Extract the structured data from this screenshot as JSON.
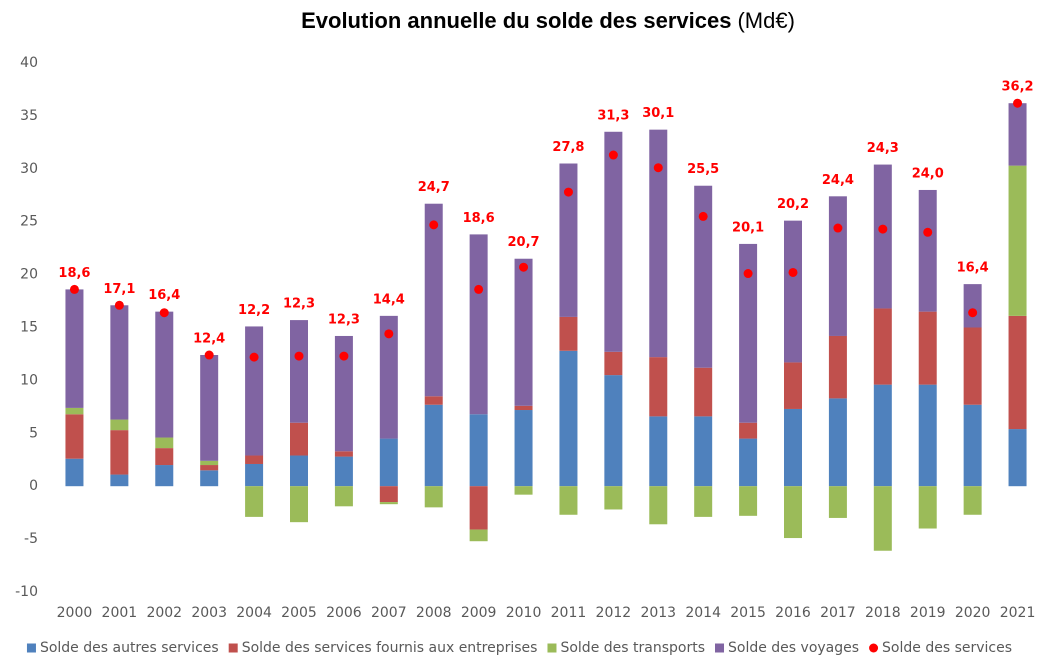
{
  "chart_data": {
    "type": "bar",
    "stacked": true,
    "title": "Evolution annuelle du solde des services",
    "title_unit": "(Md€)",
    "categories": [
      "2000",
      "2001",
      "2002",
      "2003",
      "2004",
      "2005",
      "2006",
      "2007",
      "2008",
      "2009",
      "2010",
      "2011",
      "2012",
      "2013",
      "2014",
      "2015",
      "2016",
      "2017",
      "2018",
      "2019",
      "2020",
      "2021"
    ],
    "series": [
      {
        "name": "Solde des autres services",
        "color": "#4f81bd",
        "values": [
          2.6,
          1.1,
          2.0,
          1.5,
          2.1,
          2.9,
          2.8,
          4.5,
          7.7,
          6.8,
          7.2,
          12.8,
          10.5,
          6.6,
          6.6,
          4.5,
          7.3,
          8.3,
          9.6,
          9.6,
          7.7,
          5.4
        ]
      },
      {
        "name": "Solde des services fournis aux entreprises",
        "color": "#c0504d",
        "values": [
          4.2,
          4.2,
          1.6,
          0.5,
          0.8,
          3.1,
          0.5,
          -1.5,
          0.8,
          -4.1,
          0.4,
          3.2,
          2.2,
          5.6,
          4.6,
          1.5,
          4.4,
          5.9,
          7.2,
          6.9,
          7.3,
          10.7
        ]
      },
      {
        "name": "Solde des transports",
        "color": "#9bbb59",
        "values": [
          0.6,
          1.0,
          1.0,
          0.4,
          -2.9,
          -3.4,
          -1.9,
          -0.2,
          -2.0,
          -1.1,
          -0.8,
          -2.7,
          -2.2,
          -3.6,
          -2.9,
          -2.8,
          -4.9,
          -3.0,
          -6.1,
          -4.0,
          -2.7,
          14.2
        ]
      },
      {
        "name": "Solde des voyages",
        "color": "#8064a2",
        "values": [
          11.2,
          10.8,
          11.9,
          10.0,
          12.2,
          9.7,
          10.9,
          11.6,
          18.2,
          17.0,
          13.9,
          14.5,
          20.8,
          21.5,
          17.2,
          16.9,
          13.4,
          13.2,
          13.6,
          11.5,
          4.1,
          5.9
        ]
      }
    ],
    "total": {
      "name": "Solde des services",
      "color": "#ff0000",
      "values": [
        18.6,
        17.1,
        16.4,
        12.4,
        12.2,
        12.3,
        12.3,
        14.4,
        24.7,
        18.6,
        20.7,
        27.8,
        31.3,
        30.1,
        25.5,
        20.1,
        20.2,
        24.4,
        24.3,
        24.0,
        16.4,
        36.2
      ],
      "value_labels": [
        "18,6",
        "17,1",
        "16,4",
        "12,4",
        "12,2",
        "12,3",
        "12,3",
        "14,4",
        "24,7",
        "18,6",
        "20,7",
        "27,8",
        "31,3",
        "30,1",
        "25,5",
        "20,1",
        "20,2",
        "24,4",
        "24,3",
        "24,0",
        "16,4",
        "36,2"
      ]
    },
    "ylim": [
      -10,
      40
    ],
    "yticks": [
      -10,
      -5,
      0,
      5,
      10,
      15,
      20,
      25,
      30,
      35,
      40
    ],
    "grid": false,
    "legend": "bottom"
  }
}
